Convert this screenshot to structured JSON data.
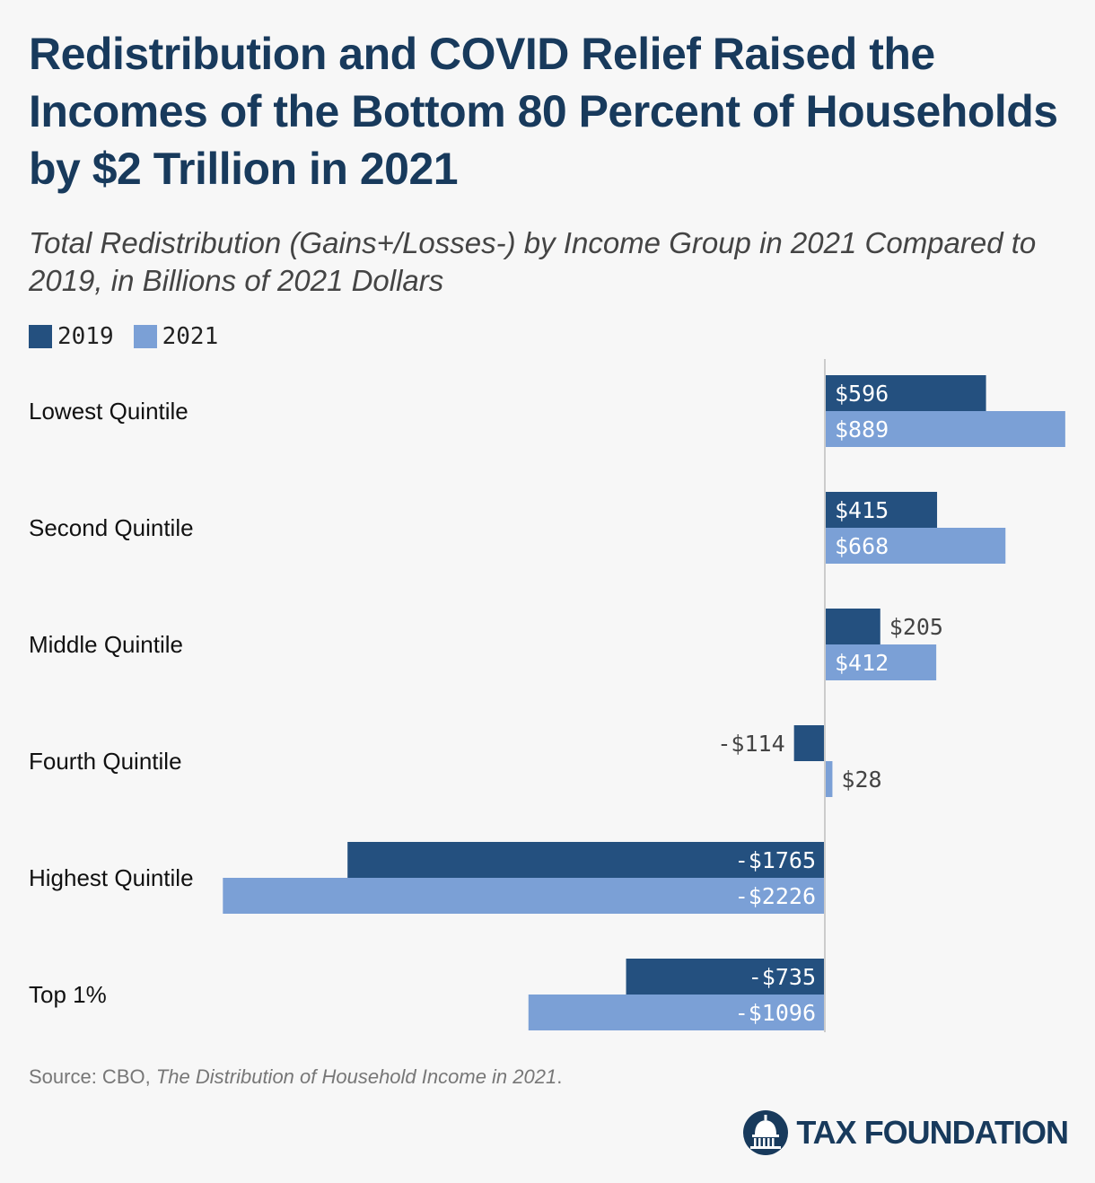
{
  "title": "Redistribution and COVID Relief Raised the Incomes of the Bottom 80 Percent of Households by $2 Trillion in 2021",
  "subtitle": "Total Redistribution (Gains+/Losses-) by Income Group in 2021 Compared to 2019, in Billions of 2021 Dollars",
  "source": {
    "prefix": "Source: CBO, ",
    "title": "The Distribution of Household Income in 2021",
    "suffix": "."
  },
  "logo": {
    "text": "TAX FOUNDATION",
    "icon": "capitol-dome-icon"
  },
  "colors": {
    "series_2019": "#24507f",
    "series_2021": "#7ba0d6",
    "title": "#183a5c"
  },
  "chart_data": {
    "type": "bar",
    "orientation": "horizontal",
    "categories": [
      "Lowest Quintile",
      "Second Quintile",
      "Middle Quintile",
      "Fourth Quintile",
      "Highest Quintile",
      "Top 1%"
    ],
    "series": [
      {
        "name": "2019",
        "values": [
          596,
          415,
          205,
          -114,
          -1765,
          -735
        ],
        "labels": [
          "$596",
          "$415",
          "$205",
          "-$114",
          "-$1765",
          "-$735"
        ]
      },
      {
        "name": "2021",
        "values": [
          889,
          668,
          412,
          28,
          -2226,
          -1096
        ],
        "labels": [
          "$889",
          "$668",
          "$412",
          "$28",
          "-$2226",
          "-$1096"
        ]
      }
    ],
    "legend_position": "top-left",
    "grid": false
  }
}
